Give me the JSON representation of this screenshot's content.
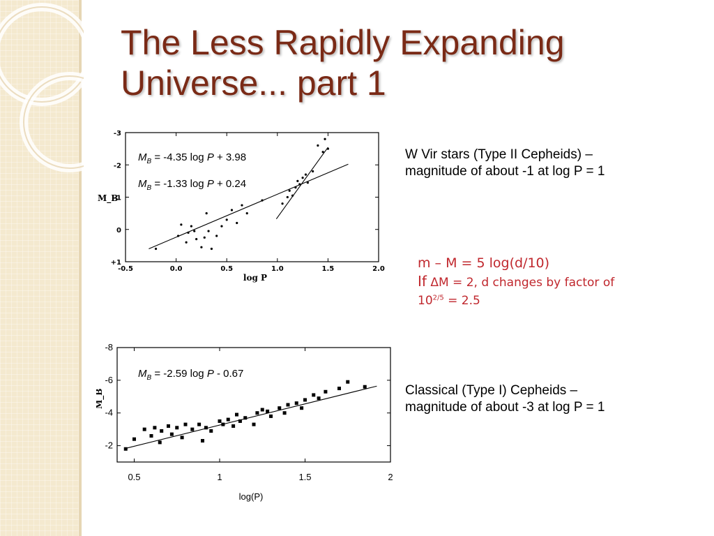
{
  "slide": {
    "title_line1": "The Less Rapidly Expanding",
    "title_line2": "Universe... part 1",
    "colors": {
      "title": "#7a2a16",
      "accent_text": "#c0272d",
      "sidebar": "#f4e9cf"
    }
  },
  "top_note": {
    "line1": "W Vir stars (Type II Cepheids) –",
    "line2": "magnitude of about -1 at log P = 1"
  },
  "formula_note": {
    "line1": "m – M = 5 log(d/10)",
    "line2_prefix": "If",
    "line2_rest": "ΔM = 2, d changes by factor of",
    "line3_base": "10",
    "line3_exp": "2/5",
    "line3_rest": " = 2.5"
  },
  "bottom_note": {
    "line1": "Classical (Type I) Cepheids –",
    "line2": "magnitude of about -3 at log P = 1"
  },
  "chart_data": [
    {
      "type": "scatter",
      "title": "",
      "xlabel": "log P",
      "ylabel": "M_B",
      "xlim": [
        -0.5,
        2.0
      ],
      "ylim": [
        1,
        -3
      ],
      "y_inverted": true,
      "xticks": [
        "-0.5",
        "0.0",
        "0.5",
        "1.0",
        "1.5",
        "2.0"
      ],
      "yticks": [
        "-3",
        "-2",
        "-1",
        "0",
        "+1"
      ],
      "fit_lines": [
        {
          "equation": {
            "prefix": "M",
            "sub": "B",
            "rest_a": " = -4.35 log ",
            "var": "P",
            "rest_b": " + 3.98"
          },
          "slope": -4.35,
          "intercept": 3.98,
          "x_range": [
            0.99,
            1.5
          ]
        },
        {
          "equation": {
            "prefix": "M",
            "sub": "B",
            "rest_a": " = -1.33 log ",
            "var": "P",
            "rest_b": " + 0.24"
          },
          "slope": -1.33,
          "intercept": 0.24,
          "x_range": [
            -0.27,
            1.7
          ]
        }
      ],
      "points": [
        {
          "x": -0.2,
          "y": 0.6
        },
        {
          "x": 0.02,
          "y": 0.2
        },
        {
          "x": 0.05,
          "y": -0.15
        },
        {
          "x": 0.1,
          "y": 0.4
        },
        {
          "x": 0.12,
          "y": 0.1
        },
        {
          "x": 0.15,
          "y": -0.1
        },
        {
          "x": 0.18,
          "y": 0.05
        },
        {
          "x": 0.2,
          "y": 0.3
        },
        {
          "x": 0.25,
          "y": 0.55
        },
        {
          "x": 0.28,
          "y": 0.25
        },
        {
          "x": 0.3,
          "y": -0.5
        },
        {
          "x": 0.32,
          "y": 0.05
        },
        {
          "x": 0.35,
          "y": 0.6
        },
        {
          "x": 0.4,
          "y": 0.2
        },
        {
          "x": 0.45,
          "y": -0.1
        },
        {
          "x": 0.5,
          "y": -0.3
        },
        {
          "x": 0.55,
          "y": -0.6
        },
        {
          "x": 0.6,
          "y": -0.2
        },
        {
          "x": 0.65,
          "y": -0.75
        },
        {
          "x": 0.7,
          "y": -0.5
        },
        {
          "x": 0.85,
          "y": -0.9
        },
        {
          "x": 1.05,
          "y": -0.8
        },
        {
          "x": 1.1,
          "y": -1.0
        },
        {
          "x": 1.12,
          "y": -1.2
        },
        {
          "x": 1.15,
          "y": -1.05
        },
        {
          "x": 1.18,
          "y": -1.3
        },
        {
          "x": 1.2,
          "y": -1.5
        },
        {
          "x": 1.22,
          "y": -1.4
        },
        {
          "x": 1.25,
          "y": -1.6
        },
        {
          "x": 1.28,
          "y": -1.7
        },
        {
          "x": 1.3,
          "y": -1.45
        },
        {
          "x": 1.35,
          "y": -1.8
        },
        {
          "x": 1.4,
          "y": -2.6
        },
        {
          "x": 1.45,
          "y": -2.4
        },
        {
          "x": 1.47,
          "y": -2.8
        },
        {
          "x": 1.5,
          "y": -2.5
        }
      ]
    },
    {
      "type": "scatter",
      "title": "",
      "xlabel": "log(P)",
      "ylabel": "M_B",
      "xlim": [
        0.4,
        2.0
      ],
      "ylim": [
        -1,
        -8
      ],
      "y_inverted": true,
      "xticks": [
        "0.5",
        "1",
        "1.5",
        "2"
      ],
      "yticks": [
        "-8",
        "-6",
        "-4",
        "-2"
      ],
      "fit_lines": [
        {
          "equation": {
            "prefix": "M",
            "sub": "B",
            "rest_a": " = -2.59 log ",
            "var": "P",
            "rest_b": " - 0.67"
          },
          "slope": -2.59,
          "intercept": -0.67,
          "x_range": [
            0.45,
            1.92
          ]
        }
      ],
      "points": [
        {
          "x": 0.45,
          "y": -1.8
        },
        {
          "x": 0.5,
          "y": -2.4
        },
        {
          "x": 0.56,
          "y": -3.0
        },
        {
          "x": 0.6,
          "y": -2.6
        },
        {
          "x": 0.62,
          "y": -3.1
        },
        {
          "x": 0.65,
          "y": -2.2
        },
        {
          "x": 0.66,
          "y": -2.9
        },
        {
          "x": 0.7,
          "y": -3.2
        },
        {
          "x": 0.72,
          "y": -2.7
        },
        {
          "x": 0.75,
          "y": -3.1
        },
        {
          "x": 0.78,
          "y": -2.5
        },
        {
          "x": 0.8,
          "y": -3.3
        },
        {
          "x": 0.84,
          "y": -3.0
        },
        {
          "x": 0.88,
          "y": -3.3
        },
        {
          "x": 0.9,
          "y": -2.3
        },
        {
          "x": 0.92,
          "y": -3.1
        },
        {
          "x": 0.95,
          "y": -2.9
        },
        {
          "x": 1.0,
          "y": -3.5
        },
        {
          "x": 1.02,
          "y": -3.3
        },
        {
          "x": 1.05,
          "y": -3.6
        },
        {
          "x": 1.08,
          "y": -3.2
        },
        {
          "x": 1.1,
          "y": -3.9
        },
        {
          "x": 1.12,
          "y": -3.5
        },
        {
          "x": 1.15,
          "y": -3.7
        },
        {
          "x": 1.2,
          "y": -3.3
        },
        {
          "x": 1.22,
          "y": -4.0
        },
        {
          "x": 1.25,
          "y": -4.2
        },
        {
          "x": 1.28,
          "y": -4.1
        },
        {
          "x": 1.3,
          "y": -3.8
        },
        {
          "x": 1.35,
          "y": -4.3
        },
        {
          "x": 1.38,
          "y": -4.0
        },
        {
          "x": 1.4,
          "y": -4.5
        },
        {
          "x": 1.45,
          "y": -4.6
        },
        {
          "x": 1.48,
          "y": -4.3
        },
        {
          "x": 1.5,
          "y": -4.8
        },
        {
          "x": 1.55,
          "y": -5.1
        },
        {
          "x": 1.58,
          "y": -4.9
        },
        {
          "x": 1.62,
          "y": -5.3
        },
        {
          "x": 1.7,
          "y": -5.5
        },
        {
          "x": 1.75,
          "y": -5.9
        },
        {
          "x": 1.85,
          "y": -5.6
        }
      ]
    }
  ]
}
